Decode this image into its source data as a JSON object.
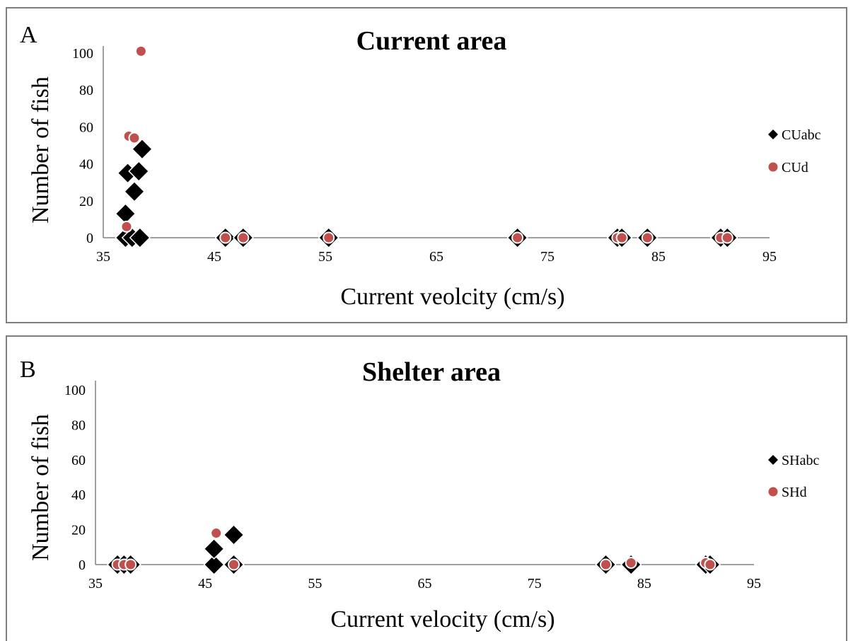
{
  "chart_data": [
    {
      "type": "scatter",
      "panel_label": "A",
      "title": "Current area",
      "xlabel": "Current veolcity (cm/s)",
      "ylabel": "Number of fish",
      "xlim": [
        35,
        95
      ],
      "ylim": [
        0,
        100
      ],
      "xticks": [
        35,
        45,
        55,
        65,
        75,
        85,
        95
      ],
      "yticks": [
        0,
        20,
        40,
        60,
        80,
        100
      ],
      "grid": false,
      "legend_position": "right",
      "series": [
        {
          "name": "CUabc",
          "marker": "diamond",
          "color": "#000000",
          "points": [
            [
              37.0,
              0
            ],
            [
              37.0,
              13
            ],
            [
              37.2,
              35
            ],
            [
              37.6,
              0
            ],
            [
              37.8,
              25
            ],
            [
              38.2,
              36
            ],
            [
              38.3,
              0
            ],
            [
              38.5,
              48
            ],
            [
              46.0,
              0
            ],
            [
              47.6,
              0
            ],
            [
              55.3,
              0
            ],
            [
              72.3,
              0
            ],
            [
              81.3,
              0
            ],
            [
              81.7,
              0
            ],
            [
              84.0,
              0
            ],
            [
              90.6,
              0
            ],
            [
              91.2,
              0
            ]
          ]
        },
        {
          "name": "CUd",
          "marker": "circle",
          "color": "#c0504d",
          "points": [
            [
              37.1,
              6
            ],
            [
              37.3,
              55
            ],
            [
              37.8,
              54
            ],
            [
              38.4,
              101
            ],
            [
              46.0,
              0
            ],
            [
              47.6,
              0
            ],
            [
              55.3,
              0
            ],
            [
              72.3,
              0
            ],
            [
              81.3,
              0
            ],
            [
              81.7,
              0
            ],
            [
              84.0,
              0
            ],
            [
              90.6,
              0
            ],
            [
              91.2,
              0
            ]
          ]
        }
      ]
    },
    {
      "type": "scatter",
      "panel_label": "B",
      "title": "Shelter area",
      "xlabel": "Current velocity (cm/s)",
      "ylabel": "Number of fish",
      "xlim": [
        35,
        95
      ],
      "ylim": [
        0,
        100
      ],
      "xticks": [
        35,
        45,
        55,
        65,
        75,
        85,
        95
      ],
      "yticks": [
        0,
        20,
        40,
        60,
        80,
        100
      ],
      "grid": false,
      "legend_position": "right",
      "series": [
        {
          "name": "SHabc",
          "marker": "diamond",
          "color": "#000000",
          "points": [
            [
              37.0,
              0
            ],
            [
              37.6,
              0
            ],
            [
              38.2,
              0
            ],
            [
              45.8,
              0
            ],
            [
              45.8,
              9
            ],
            [
              47.6,
              0
            ],
            [
              47.6,
              17
            ],
            [
              81.5,
              0
            ],
            [
              83.8,
              0
            ],
            [
              90.6,
              0
            ],
            [
              91.0,
              0
            ]
          ]
        },
        {
          "name": "SHd",
          "marker": "circle",
          "color": "#c0504d",
          "points": [
            [
              37.0,
              0
            ],
            [
              37.6,
              0
            ],
            [
              38.2,
              0
            ],
            [
              46.0,
              18
            ],
            [
              47.6,
              0
            ],
            [
              81.5,
              0
            ],
            [
              83.8,
              1
            ],
            [
              90.6,
              1
            ],
            [
              91.0,
              0
            ]
          ]
        }
      ]
    }
  ]
}
